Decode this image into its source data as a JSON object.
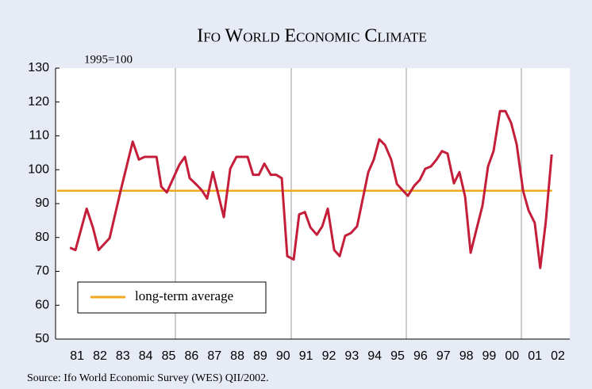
{
  "chart_data": {
    "type": "line",
    "title": "Ifo World Economic Climate",
    "y_label": "1995=100",
    "source": "Source: Ifo World Economic Survey (WES) QII/2002.",
    "xlim": [
      1980.06,
      2002.52
    ],
    "ylim": [
      50,
      130
    ],
    "yticks": [
      50,
      60,
      70,
      80,
      90,
      100,
      110,
      120,
      130
    ],
    "xticks": [
      {
        "value": 1981,
        "label": "81"
      },
      {
        "value": 1982,
        "label": "82"
      },
      {
        "value": 1983,
        "label": "83"
      },
      {
        "value": 1984,
        "label": "84"
      },
      {
        "value": 1985,
        "label": "85"
      },
      {
        "value": 1986,
        "label": "86"
      },
      {
        "value": 1987,
        "label": "87"
      },
      {
        "value": 1988,
        "label": "88"
      },
      {
        "value": 1989,
        "label": "89"
      },
      {
        "value": 1990,
        "label": "90"
      },
      {
        "value": 1991,
        "label": "91"
      },
      {
        "value": 1992,
        "label": "92"
      },
      {
        "value": 1993,
        "label": "93"
      },
      {
        "value": 1994,
        "label": "94"
      },
      {
        "value": 1995,
        "label": "95"
      },
      {
        "value": 1996,
        "label": "96"
      },
      {
        "value": 1997,
        "label": "97"
      },
      {
        "value": 1998,
        "label": "98"
      },
      {
        "value": 1999,
        "label": "99"
      },
      {
        "value": 2000,
        "label": "00"
      },
      {
        "value": 2001,
        "label": "01"
      },
      {
        "value": 2002,
        "label": "02"
      }
    ],
    "series": [
      {
        "color": "#c41e3a",
        "x": [
          1980.69,
          1980.93,
          1981.42,
          1981.69,
          1981.94,
          1982.42,
          1982.91,
          1983.43,
          1983.7,
          1983.95,
          1984.19,
          1984.47,
          1984.68,
          1984.92,
          1985.47,
          1985.71,
          1985.92,
          1986.23,
          1986.44,
          1986.68,
          1986.93,
          1987.41,
          1987.69,
          1987.96,
          1988.21,
          1988.45,
          1988.69,
          1988.94,
          1989.18,
          1989.46,
          1989.7,
          1989.94,
          1990.18,
          1990.46,
          1990.7,
          1990.95,
          1991.19,
          1991.47,
          1991.71,
          1991.95,
          1992.23,
          1992.47,
          1992.71,
          1992.96,
          1993.23,
          1993.72,
          1993.96,
          1994.2,
          1994.45,
          1994.72,
          1994.97,
          1995.21,
          1995.45,
          1995.73,
          1995.97,
          1996.21,
          1996.46,
          1996.7,
          1996.94,
          1997.18,
          1997.46,
          1997.7,
          1997.95,
          1998.19,
          1998.43,
          1998.71,
          1998.95,
          1999.19,
          1999.47,
          1999.71,
          1999.96,
          2000.2,
          2000.48,
          2000.72,
          2000.99,
          2001.23,
          2001.47,
          2001.73
        ],
        "values": [
          77,
          76.3,
          88.5,
          83,
          76.3,
          79.8,
          94,
          108.3,
          103,
          103.8,
          103.8,
          103.8,
          95,
          93.3,
          101.5,
          103.8,
          97.5,
          95.5,
          94,
          91.5,
          99.3,
          86,
          100.3,
          103.8,
          103.8,
          103.8,
          98.5,
          98.5,
          101.8,
          98.5,
          98.5,
          97.5,
          74.5,
          73.5,
          86.8,
          87.5,
          83,
          80.8,
          83.3,
          88.5,
          76.3,
          74.5,
          80.5,
          81.3,
          83.3,
          99.3,
          103,
          109,
          107.3,
          103,
          95.8,
          94,
          92.3,
          95.3,
          97,
          100.3,
          101,
          103,
          105.5,
          104.8,
          96,
          99.3,
          92,
          75.5,
          82,
          89.5,
          101,
          105.5,
          117.3,
          117.3,
          113.8,
          107.5,
          93.8,
          88,
          84.3,
          71,
          84.5,
          104.5
        ]
      },
      {
        "name": "long-term average",
        "color": "#f0a81e",
        "x": [
          1980.13,
          2001.75
        ],
        "values": [
          93.8,
          93.8
        ]
      }
    ]
  }
}
